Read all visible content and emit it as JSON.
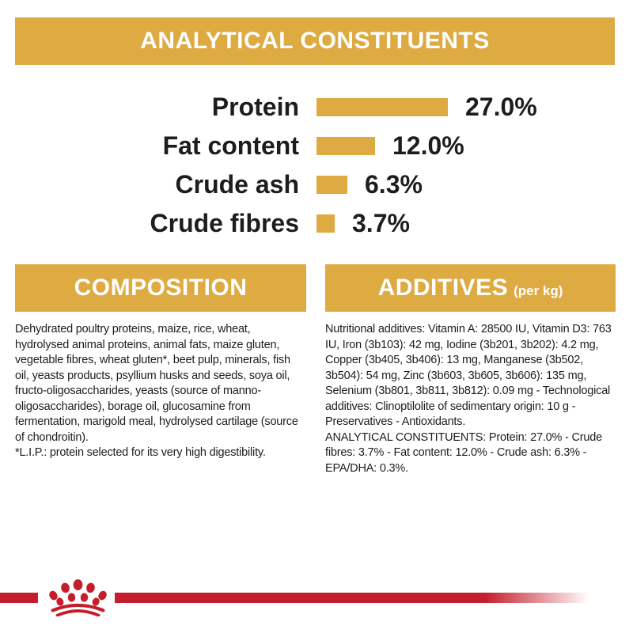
{
  "colors": {
    "gold": "#deaa42",
    "red": "#c41e2c",
    "text": "#1d1d1b",
    "banner_text": "#ffffff"
  },
  "title_banner": {
    "label": "ANALYTICAL CONSTITUENTS"
  },
  "chart_data": {
    "type": "bar",
    "orientation": "horizontal",
    "title": "ANALYTICAL CONSTITUENTS",
    "categories": [
      "Protein",
      "Fat content",
      "Crude ash",
      "Crude fibres"
    ],
    "values": [
      27.0,
      12.0,
      6.3,
      3.7
    ],
    "value_labels": [
      "27.0%",
      "12.0%",
      "6.3%",
      "3.7%"
    ],
    "unit": "%",
    "bar_color": "#deaa42",
    "xlim": [
      0,
      30
    ],
    "grid": false,
    "legend": false
  },
  "composition": {
    "heading": "COMPOSITION",
    "body": "Dehydrated poultry proteins, maize, rice, wheat, hydrolysed animal proteins, animal fats, maize gluten, vegetable fibres, wheat gluten*, beet pulp, minerals, fish oil, yeasts products, psyllium husks and seeds, soya oil, fructo-oligosaccharides, yeasts (source of manno-oligosaccharides), borage oil, glucosamine from fermentation, marigold meal, hydrolysed cartilage (source of chondroitin).",
    "note": "*L.I.P.: protein selected for its very high digestibility."
  },
  "additives": {
    "heading": "ADDITIVES",
    "heading_suffix": "(per kg)",
    "body": "Nutritional additives: Vitamin A: 28500 IU, Vitamin D3: 763 IU, Iron (3b103): 42 mg, Iodine (3b201, 3b202): 4.2 mg, Copper (3b405, 3b406): 13 mg, Manganese (3b502, 3b504): 54 mg, Zinc (3b603, 3b605, 3b606): 135 mg, Selenium (3b801, 3b811, 3b812): 0.09 mg - Technological additives: Clinoptilolite of sedimentary origin: 10 g - Preservatives - Antioxidants.",
    "analytical_summary": "ANALYTICAL CONSTITUENTS: Protein: 27.0% - Crude fibres: 3.7% - Fat content: 12.0% - Crude ash: 6.3% - EPA/DHA: 0.3%."
  },
  "footer": {
    "logo": "royal-canin-crown"
  }
}
